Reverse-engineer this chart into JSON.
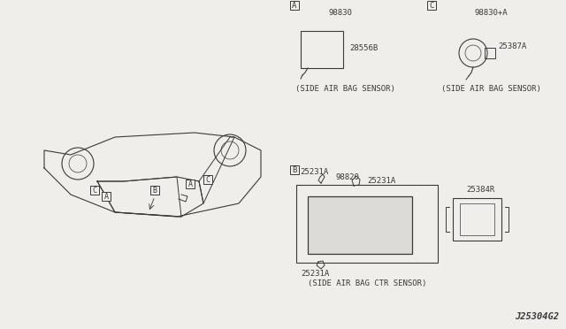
{
  "bg_color": "#f0eeea",
  "line_color": "#3a3a3a",
  "diagram_code": "J25304G2",
  "part_98830": "98830",
  "part_28556B": "28556B",
  "part_98830A": "98830+A",
  "part_25387A": "25387A",
  "part_98820": "98820",
  "part_25231A_1": "25231A",
  "part_25231A_2": "25231A",
  "part_25231A_3": "25231A",
  "part_25384R": "25384R",
  "caption_A": "(SIDE AIR BAG SENSOR)",
  "caption_B": "(SIDE AIR BAG CTR SENSOR)",
  "caption_C": "(SIDE AIR BAG SENSOR)",
  "font_size_part": 6.5,
  "font_size_caption": 6.5,
  "font_size_label": 6.5,
  "font_size_code": 7.5
}
